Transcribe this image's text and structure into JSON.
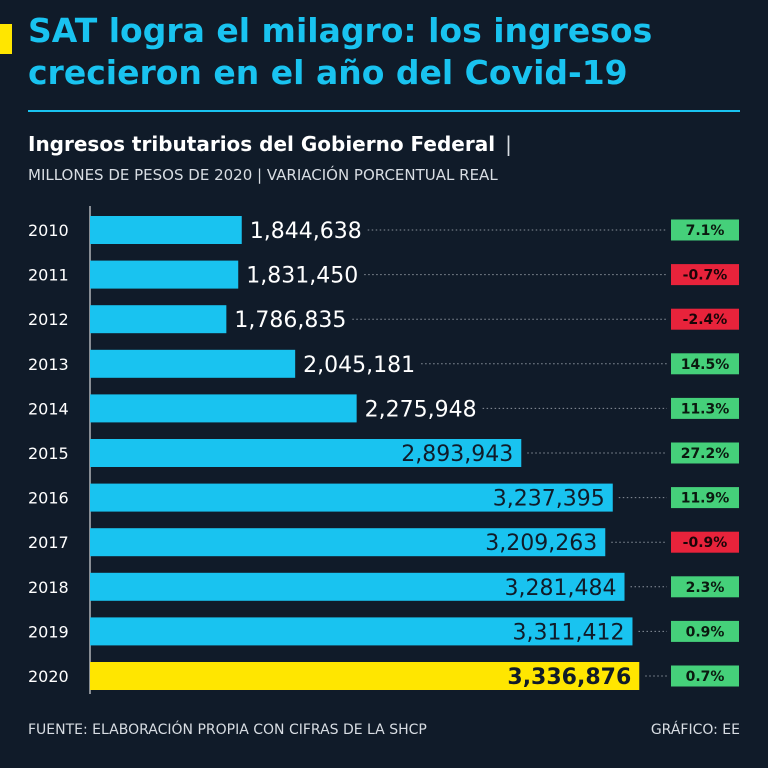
{
  "header": {
    "title": "SAT logra el milagro: los ingresos crecieron en el año del Covid-19",
    "subtitle": "Ingresos tributarios del Gobierno Federal",
    "subtitle_separator": "|",
    "units": "MILLONES DE PESOS DE 2020 | VARIACIÓN PORCENTUAL REAL"
  },
  "footer": {
    "source": "FUENTE: ELABORACIÓN PROPIA CON CIFRAS DE LA SHCP",
    "credit": "GRÁFICO: EE"
  },
  "colors": {
    "background": "#101b29",
    "bar": "#19c3f0",
    "highlight_bar": "#ffe600",
    "positive": "#45d07a",
    "negative": "#e8233b"
  },
  "chart_data": {
    "type": "bar",
    "orientation": "horizontal",
    "title": "Ingresos tributarios del Gobierno Federal",
    "categories": [
      "2010",
      "2011",
      "2012",
      "2013",
      "2014",
      "2015",
      "2016",
      "2017",
      "2018",
      "2019",
      "2020"
    ],
    "values": [
      1844638,
      1831450,
      1786835,
      2045181,
      2275948,
      2893943,
      3237395,
      3209263,
      3281484,
      3311412,
      3336876
    ],
    "value_labels": [
      "1,844,638",
      "1,831,450",
      "1,786,835",
      "2,045,181",
      "2,275,948",
      "2,893,943",
      "3,237,395",
      "3,209,263",
      "3,281,484",
      "3,311,412",
      "3,336,876"
    ],
    "variation": [
      7.1,
      -0.7,
      -2.4,
      14.5,
      11.3,
      27.2,
      11.9,
      -0.9,
      2.3,
      0.9,
      0.7
    ],
    "variation_labels": [
      "7.1%",
      "-0.7%",
      "-2.4%",
      "14.5%",
      "11.3%",
      "27.2%",
      "11.9%",
      "-0.9%",
      "2.3%",
      "0.9%",
      "0.7%"
    ],
    "highlight": "2020",
    "xlim": [
      1275000,
      3700000
    ],
    "grid": false
  }
}
